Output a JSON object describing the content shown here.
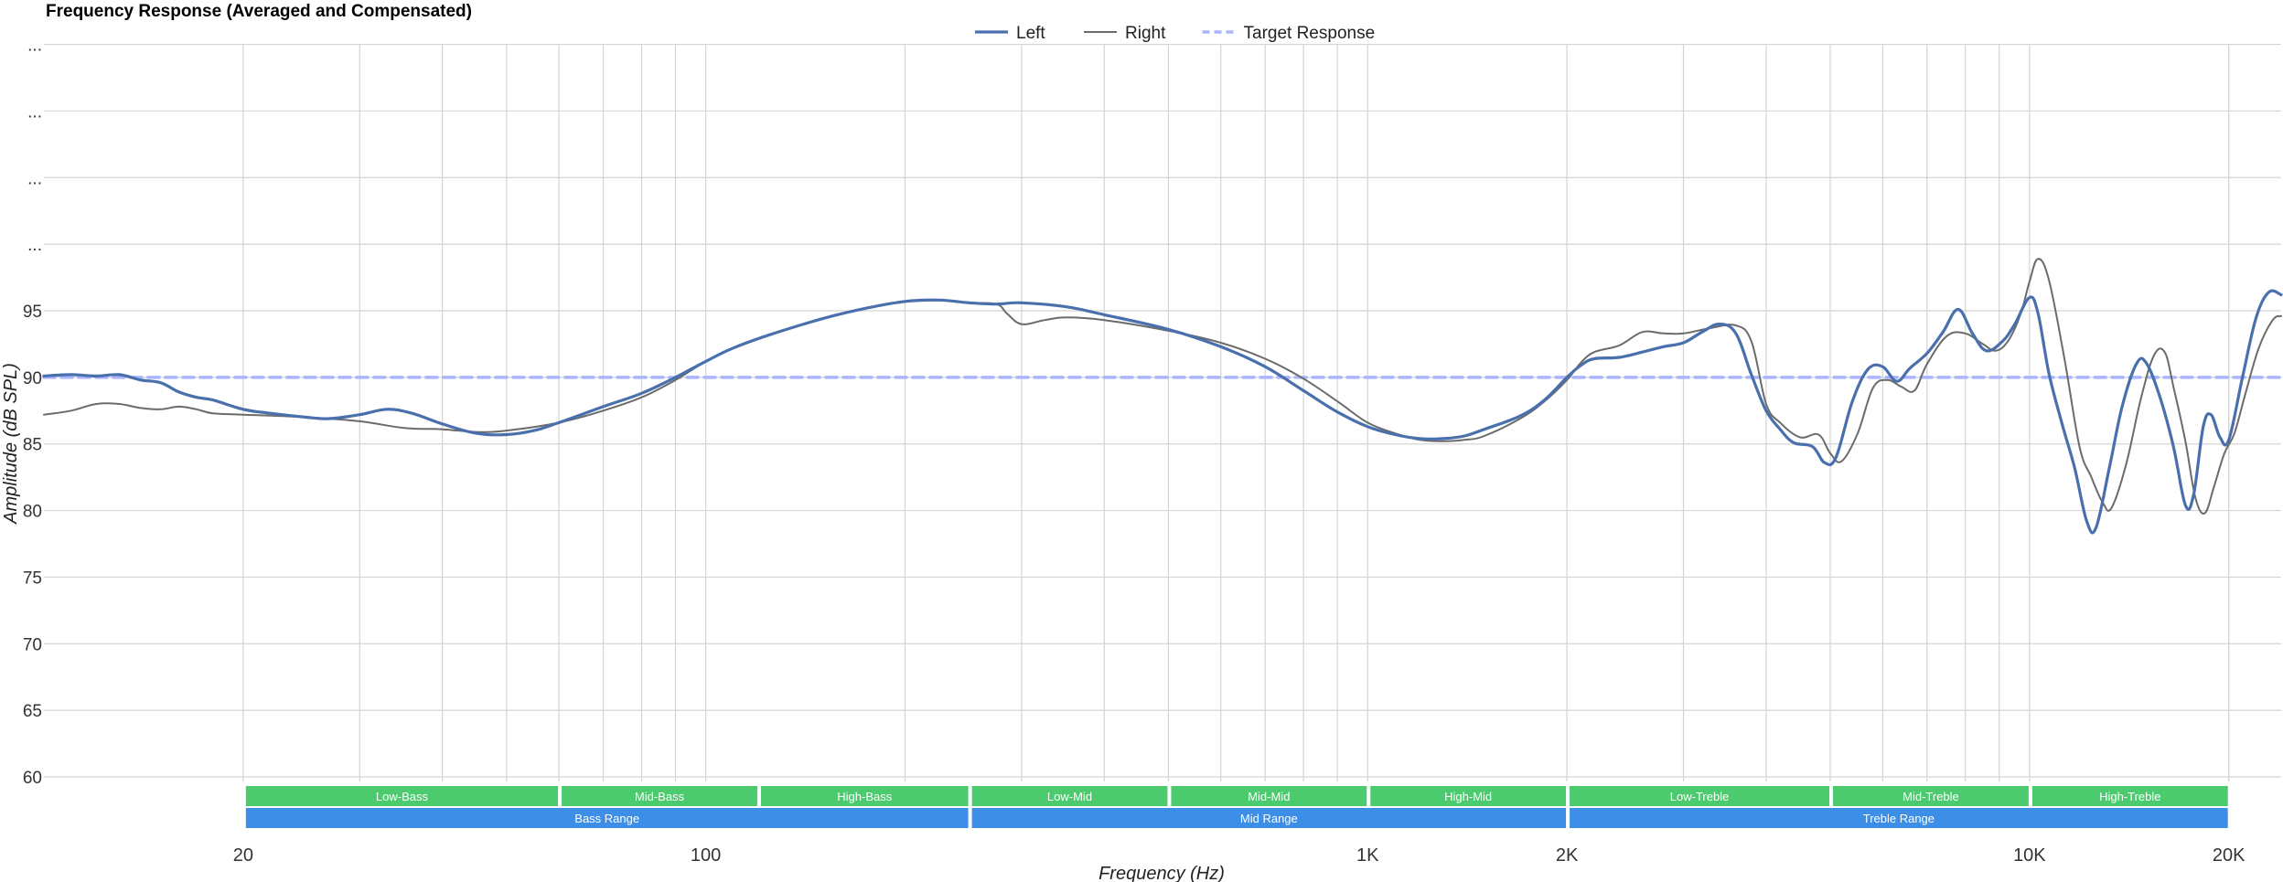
{
  "chart_data": {
    "type": "line",
    "title": "Frequency Response (Averaged and Compensated)",
    "xlabel": "Frequency (Hz)",
    "ylabel": "Amplitude (dB SPL)",
    "x_scale": "log",
    "xlim": [
      10,
      24000
    ],
    "ylim": [
      56,
      110
    ],
    "y_ticks": [
      {
        "value": 60,
        "label": "60"
      },
      {
        "value": 65,
        "label": "65"
      },
      {
        "value": 70,
        "label": "70"
      },
      {
        "value": 75,
        "label": "75"
      },
      {
        "value": 80,
        "label": "80"
      },
      {
        "value": 85,
        "label": "85"
      },
      {
        "value": 90,
        "label": "90"
      },
      {
        "value": 95,
        "label": "95"
      },
      {
        "value": 100,
        "label": "..."
      },
      {
        "value": 105,
        "label": "..."
      },
      {
        "value": 110,
        "label": "..."
      },
      {
        "value": 115,
        "label": "..."
      }
    ],
    "x_ticks": [
      {
        "value": 20,
        "label": "20"
      },
      {
        "value": 100,
        "label": "100"
      },
      {
        "value": 1000,
        "label": "1K"
      },
      {
        "value": 2000,
        "label": "2K"
      },
      {
        "value": 10000,
        "label": "10K"
      },
      {
        "value": 20000,
        "label": "20K"
      }
    ],
    "grid": true,
    "legend": "top-center",
    "colors": {
      "left": "#4a6fad",
      "right": "#6b6b6b",
      "target": "#aab4ff",
      "band_row1": "#4ccb6e",
      "band_row2": "#3d8ee6",
      "grid": "#d4d4d4"
    },
    "series": [
      {
        "name": "Left",
        "points": [
          [
            10,
            90.1
          ],
          [
            11,
            90.2
          ],
          [
            12,
            90.1
          ],
          [
            13,
            90.2
          ],
          [
            14,
            89.8
          ],
          [
            15,
            89.6
          ],
          [
            16,
            88.9
          ],
          [
            17,
            88.5
          ],
          [
            18,
            88.3
          ],
          [
            20,
            87.6
          ],
          [
            22,
            87.3
          ],
          [
            25,
            87.0
          ],
          [
            27,
            86.9
          ],
          [
            30,
            87.2
          ],
          [
            33,
            87.6
          ],
          [
            36,
            87.3
          ],
          [
            40,
            86.5
          ],
          [
            45,
            85.8
          ],
          [
            50,
            85.7
          ],
          [
            55,
            86.0
          ],
          [
            60,
            86.6
          ],
          [
            70,
            87.8
          ],
          [
            80,
            88.8
          ],
          [
            90,
            90.0
          ],
          [
            100,
            91.2
          ],
          [
            110,
            92.2
          ],
          [
            125,
            93.2
          ],
          [
            150,
            94.4
          ],
          [
            175,
            95.2
          ],
          [
            200,
            95.7
          ],
          [
            225,
            95.8
          ],
          [
            250,
            95.6
          ],
          [
            275,
            95.5
          ],
          [
            300,
            95.6
          ],
          [
            350,
            95.3
          ],
          [
            400,
            94.7
          ],
          [
            500,
            93.6
          ],
          [
            600,
            92.3
          ],
          [
            700,
            90.8
          ],
          [
            800,
            89.0
          ],
          [
            900,
            87.4
          ],
          [
            1000,
            86.3
          ],
          [
            1100,
            85.7
          ],
          [
            1200,
            85.4
          ],
          [
            1300,
            85.4
          ],
          [
            1400,
            85.6
          ],
          [
            1500,
            86.1
          ],
          [
            1700,
            87.1
          ],
          [
            1850,
            88.3
          ],
          [
            2000,
            90.0
          ],
          [
            2100,
            90.9
          ],
          [
            2200,
            91.4
          ],
          [
            2400,
            91.5
          ],
          [
            2600,
            91.9
          ],
          [
            2800,
            92.3
          ],
          [
            3000,
            92.6
          ],
          [
            3200,
            93.4
          ],
          [
            3400,
            94.0
          ],
          [
            3600,
            93.3
          ],
          [
            3800,
            90.2
          ],
          [
            4000,
            87.5
          ],
          [
            4200,
            86.1
          ],
          [
            4400,
            85.1
          ],
          [
            4700,
            84.8
          ],
          [
            4900,
            83.6
          ],
          [
            5100,
            84.0
          ],
          [
            5400,
            88.2
          ],
          [
            5700,
            90.6
          ],
          [
            6000,
            90.8
          ],
          [
            6300,
            89.7
          ],
          [
            6600,
            90.7
          ],
          [
            7000,
            91.8
          ],
          [
            7400,
            93.4
          ],
          [
            7800,
            95.1
          ],
          [
            8200,
            93.3
          ],
          [
            8600,
            92.0
          ],
          [
            9100,
            92.7
          ],
          [
            9500,
            94.0
          ],
          [
            10000,
            96.0
          ],
          [
            10300,
            94.8
          ],
          [
            10700,
            90.3
          ],
          [
            11200,
            86.5
          ],
          [
            11700,
            83.2
          ],
          [
            12200,
            79.2
          ],
          [
            12600,
            78.7
          ],
          [
            13200,
            83.2
          ],
          [
            13800,
            87.8
          ],
          [
            14500,
            91.0
          ],
          [
            15000,
            91.1
          ],
          [
            15700,
            88.7
          ],
          [
            16500,
            84.8
          ],
          [
            17200,
            80.4
          ],
          [
            17700,
            81.2
          ],
          [
            18300,
            86.3
          ],
          [
            18800,
            87.2
          ],
          [
            19400,
            85.5
          ],
          [
            20000,
            85.3
          ],
          [
            21000,
            90.1
          ],
          [
            22000,
            94.5
          ],
          [
            23000,
            96.4
          ],
          [
            24000,
            96.2
          ]
        ]
      },
      {
        "name": "Right",
        "points": [
          [
            10,
            87.2
          ],
          [
            11,
            87.5
          ],
          [
            12,
            88.0
          ],
          [
            13,
            88.0
          ],
          [
            14,
            87.7
          ],
          [
            15,
            87.6
          ],
          [
            16,
            87.8
          ],
          [
            17,
            87.6
          ],
          [
            18,
            87.3
          ],
          [
            20,
            87.2
          ],
          [
            25,
            87.0
          ],
          [
            30,
            86.7
          ],
          [
            35,
            86.2
          ],
          [
            40,
            86.1
          ],
          [
            45,
            85.9
          ],
          [
            50,
            86.0
          ],
          [
            60,
            86.6
          ],
          [
            70,
            87.5
          ],
          [
            80,
            88.5
          ],
          [
            90,
            89.8
          ],
          [
            100,
            91.2
          ],
          [
            110,
            92.2
          ],
          [
            125,
            93.2
          ],
          [
            150,
            94.4
          ],
          [
            175,
            95.2
          ],
          [
            200,
            95.7
          ],
          [
            225,
            95.8
          ],
          [
            250,
            95.6
          ],
          [
            275,
            95.5
          ],
          [
            285,
            94.8
          ],
          [
            300,
            94.0
          ],
          [
            325,
            94.3
          ],
          [
            350,
            94.5
          ],
          [
            400,
            94.3
          ],
          [
            500,
            93.5
          ],
          [
            600,
            92.6
          ],
          [
            700,
            91.4
          ],
          [
            800,
            89.9
          ],
          [
            900,
            88.2
          ],
          [
            1000,
            86.6
          ],
          [
            1100,
            85.8
          ],
          [
            1200,
            85.3
          ],
          [
            1300,
            85.2
          ],
          [
            1400,
            85.3
          ],
          [
            1500,
            85.6
          ],
          [
            1700,
            86.9
          ],
          [
            1850,
            88.2
          ],
          [
            2000,
            89.8
          ],
          [
            2100,
            91.1
          ],
          [
            2200,
            91.9
          ],
          [
            2400,
            92.4
          ],
          [
            2600,
            93.4
          ],
          [
            2800,
            93.3
          ],
          [
            3000,
            93.3
          ],
          [
            3300,
            93.7
          ],
          [
            3600,
            93.9
          ],
          [
            3800,
            92.7
          ],
          [
            4000,
            88.0
          ],
          [
            4200,
            86.6
          ],
          [
            4500,
            85.5
          ],
          [
            4800,
            85.7
          ],
          [
            5000,
            84.3
          ],
          [
            5200,
            83.7
          ],
          [
            5500,
            85.8
          ],
          [
            5800,
            89.2
          ],
          [
            6100,
            89.8
          ],
          [
            6400,
            89.3
          ],
          [
            6700,
            89.0
          ],
          [
            7000,
            91.0
          ],
          [
            7500,
            93.1
          ],
          [
            8000,
            93.3
          ],
          [
            8500,
            92.5
          ],
          [
            8900,
            92.0
          ],
          [
            9300,
            92.8
          ],
          [
            9700,
            94.8
          ],
          [
            10000,
            97.2
          ],
          [
            10300,
            98.9
          ],
          [
            10700,
            97.3
          ],
          [
            11300,
            91.3
          ],
          [
            11900,
            84.8
          ],
          [
            12400,
            82.5
          ],
          [
            12900,
            80.6
          ],
          [
            13300,
            80.2
          ],
          [
            14000,
            83.5
          ],
          [
            14700,
            88.2
          ],
          [
            15400,
            91.6
          ],
          [
            16000,
            91.9
          ],
          [
            16500,
            89.3
          ],
          [
            17200,
            85.2
          ],
          [
            17800,
            81.0
          ],
          [
            18400,
            79.8
          ],
          [
            19000,
            81.8
          ],
          [
            19700,
            84.3
          ],
          [
            20400,
            85.8
          ],
          [
            21200,
            88.8
          ],
          [
            22200,
            92.2
          ],
          [
            23300,
            94.3
          ],
          [
            24000,
            94.6
          ]
        ]
      },
      {
        "name": "Target Response",
        "points": [
          [
            10,
            90.0
          ],
          [
            24000,
            90.0
          ]
        ]
      }
    ],
    "bands": [
      {
        "label": "Low-Bass",
        "from": 20,
        "to": 60,
        "row": 1
      },
      {
        "label": "Mid-Bass",
        "from": 60,
        "to": 120,
        "row": 1
      },
      {
        "label": "High-Bass",
        "from": 120,
        "to": 250,
        "row": 1
      },
      {
        "label": "Low-Mid",
        "from": 250,
        "to": 500,
        "row": 1
      },
      {
        "label": "Mid-Mid",
        "from": 500,
        "to": 1000,
        "row": 1
      },
      {
        "label": "High-Mid",
        "from": 1000,
        "to": 2000,
        "row": 1
      },
      {
        "label": "Low-Treble",
        "from": 2000,
        "to": 5000,
        "row": 1
      },
      {
        "label": "Mid-Treble",
        "from": 5000,
        "to": 10000,
        "row": 1
      },
      {
        "label": "High-Treble",
        "from": 10000,
        "to": 20000,
        "row": 1
      },
      {
        "label": "Bass Range",
        "from": 20,
        "to": 250,
        "row": 2
      },
      {
        "label": "Mid Range",
        "from": 250,
        "to": 2000,
        "row": 2
      },
      {
        "label": "Treble Range",
        "from": 2000,
        "to": 20000,
        "row": 2
      }
    ]
  }
}
